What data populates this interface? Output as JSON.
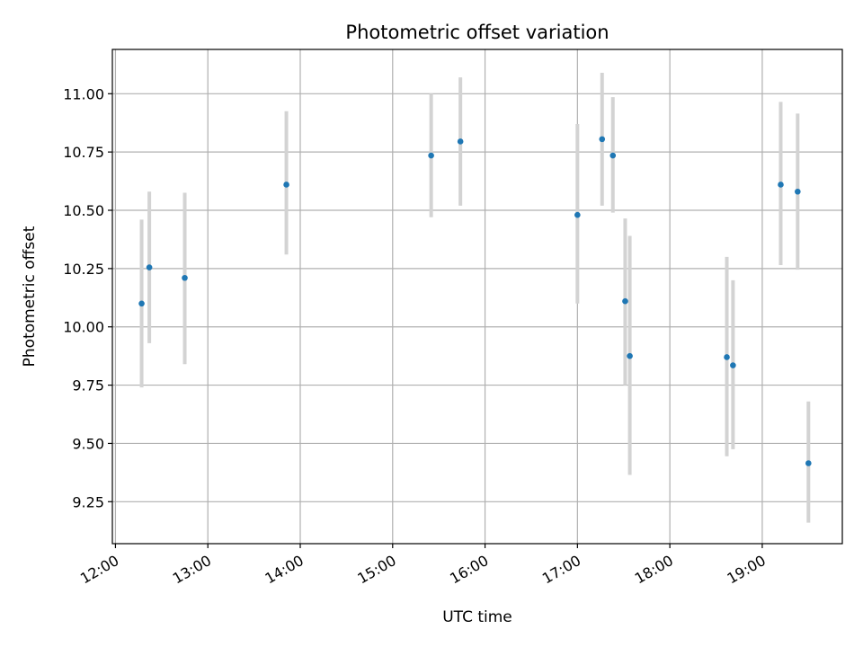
{
  "chart_data": {
    "type": "scatter",
    "title": "Photometric offset variation",
    "xlabel": "UTC time",
    "ylabel": "Photometric offset",
    "xlim": [
      "11:58",
      "19:52"
    ],
    "ylim": [
      9.07,
      11.19
    ],
    "grid": true,
    "x_ticks": [
      "12:00",
      "13:00",
      "14:00",
      "15:00",
      "16:00",
      "17:00",
      "18:00",
      "19:00"
    ],
    "y_ticks": [
      "9.25",
      "9.50",
      "9.75",
      "10.00",
      "10.25",
      "10.50",
      "10.75",
      "11.00"
    ],
    "series": [
      {
        "points": [
          {
            "time": "12:17",
            "value": 10.1,
            "err_low": 9.74,
            "err_high": 10.46
          },
          {
            "time": "12:22",
            "value": 10.255,
            "err_low": 9.93,
            "err_high": 10.58
          },
          {
            "time": "12:45",
            "value": 10.21,
            "err_low": 9.84,
            "err_high": 10.575
          },
          {
            "time": "13:51",
            "value": 10.61,
            "err_low": 10.31,
            "err_high": 10.925
          },
          {
            "time": "15:25",
            "value": 10.735,
            "err_low": 10.47,
            "err_high": 11.0
          },
          {
            "time": "15:44",
            "value": 10.795,
            "err_low": 10.52,
            "err_high": 11.07
          },
          {
            "time": "17:00",
            "value": 10.48,
            "err_low": 10.1,
            "err_high": 10.87
          },
          {
            "time": "17:16",
            "value": 10.805,
            "err_low": 10.52,
            "err_high": 11.09
          },
          {
            "time": "17:23",
            "value": 10.735,
            "err_low": 10.49,
            "err_high": 10.985
          },
          {
            "time": "17:31",
            "value": 10.11,
            "err_low": 9.75,
            "err_high": 10.465
          },
          {
            "time": "17:34",
            "value": 9.875,
            "err_low": 9.365,
            "err_high": 10.39
          },
          {
            "time": "18:37",
            "value": 9.87,
            "err_low": 9.445,
            "err_high": 10.3
          },
          {
            "time": "18:41",
            "value": 9.835,
            "err_low": 9.475,
            "err_high": 10.2
          },
          {
            "time": "19:12",
            "value": 10.61,
            "err_low": 10.265,
            "err_high": 10.965
          },
          {
            "time": "19:23",
            "value": 10.58,
            "err_low": 10.245,
            "err_high": 10.915
          },
          {
            "time": "19:30",
            "value": 9.415,
            "err_low": 9.16,
            "err_high": 9.68
          }
        ]
      }
    ],
    "colors": {
      "marker": "#1f77b4",
      "errorbar": "#d3d3d3",
      "grid": "#b0b0b0"
    }
  }
}
